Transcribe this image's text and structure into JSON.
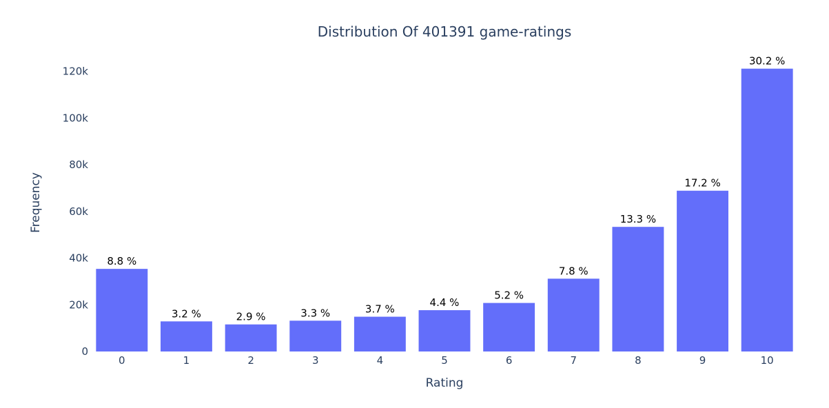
{
  "chart_data": {
    "type": "bar",
    "title": "Distribution Of 401391 game-ratings",
    "xlabel": "Rating",
    "ylabel": "Frequency",
    "categories": [
      "0",
      "1",
      "2",
      "3",
      "4",
      "5",
      "6",
      "7",
      "8",
      "9",
      "10"
    ],
    "values": [
      35400,
      12900,
      11600,
      13200,
      14900,
      17700,
      20800,
      31200,
      53400,
      68900,
      121200
    ],
    "data_labels": [
      "8.8 %",
      "3.2 %",
      "2.9 %",
      "3.3 %",
      "3.7 %",
      "4.4 %",
      "5.2 %",
      "7.8 %",
      "13.3 %",
      "17.2 %",
      "30.2 %"
    ],
    "ylim": [
      0,
      127000
    ],
    "yticks": [
      0,
      20000,
      40000,
      60000,
      80000,
      100000,
      120000
    ],
    "ytick_labels": [
      "0",
      "20k",
      "40k",
      "60k",
      "80k",
      "100k",
      "120k"
    ],
    "grid": false,
    "legend": "none",
    "colors": {
      "bar": "#636efa",
      "text": "#2a3f5f",
      "data_label": "#000000",
      "background": "#ffffff"
    }
  }
}
